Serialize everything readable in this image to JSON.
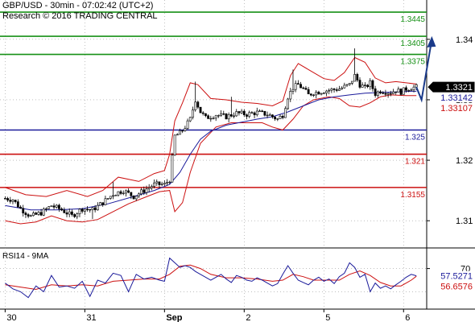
{
  "header": {
    "line1": "GBP/USD - 30min - 07:02:42 (UTC+2)",
    "line2": "Research © 2016 TRADING CENTRAL"
  },
  "rsi_title": "RSI14 - 9MA",
  "colors": {
    "resistance": "#169016",
    "pivot": "#1a1a9a",
    "support": "#cc1010",
    "band": "#cc1010",
    "ma": "#1a1a9a",
    "forecast": "#1a3a8a",
    "rsi": "#1a1a9a",
    "rsi_ma": "#cc1010"
  },
  "chart_data": [
    {
      "type": "candlestick",
      "y_ticks": [
        "1.34",
        "1.33",
        "1.32",
        "1.31"
      ],
      "y_tick_values": [
        1.34,
        1.33,
        1.32,
        1.31
      ],
      "ylim": [
        1.3055,
        1.3465
      ],
      "x_ticks": [
        {
          "label": "30",
          "x": 0
        },
        {
          "label": "31",
          "x": 31
        },
        {
          "label": "Sep",
          "x": 62
        },
        {
          "label": "2",
          "x": 93
        },
        {
          "label": "5",
          "x": 124
        },
        {
          "label": "6",
          "x": 155
        }
      ],
      "xlim": [
        -2,
        164
      ],
      "levels": [
        {
          "value": 1.3445,
          "label": "1.3445",
          "kind": "resistance"
        },
        {
          "value": 1.3405,
          "label": "1.3405",
          "kind": "resistance"
        },
        {
          "value": 1.3375,
          "label": "1.3375",
          "kind": "resistance"
        },
        {
          "value": 1.325,
          "label": "1.325",
          "kind": "pivot"
        },
        {
          "value": 1.321,
          "label": "1.321",
          "kind": "support"
        },
        {
          "value": 1.3155,
          "label": "1.3155",
          "kind": "support"
        }
      ],
      "price_tags": [
        {
          "value": 1.3321,
          "label": "1.3321",
          "style": "black"
        },
        {
          "value": 1.33142,
          "label": "1.33142",
          "style": "blue"
        },
        {
          "value": 1.33107,
          "label": "1.33107",
          "style": "red"
        }
      ],
      "close_anchors": [
        [
          0,
          1.3137
        ],
        [
          3,
          1.3135
        ],
        [
          6,
          1.312
        ],
        [
          10,
          1.3107
        ],
        [
          14,
          1.3113
        ],
        [
          18,
          1.3125
        ],
        [
          22,
          1.3118
        ],
        [
          26,
          1.3108
        ],
        [
          30,
          1.312
        ],
        [
          34,
          1.3118
        ],
        [
          38,
          1.313
        ],
        [
          42,
          1.3144
        ],
        [
          46,
          1.315
        ],
        [
          50,
          1.314
        ],
        [
          54,
          1.315
        ],
        [
          58,
          1.316
        ],
        [
          62,
          1.316
        ],
        [
          64,
          1.3168
        ],
        [
          66,
          1.324
        ],
        [
          68,
          1.3245
        ],
        [
          70,
          1.3255
        ],
        [
          72,
          1.3268
        ],
        [
          74,
          1.33
        ],
        [
          76,
          1.328
        ],
        [
          78,
          1.327
        ],
        [
          82,
          1.3275
        ],
        [
          86,
          1.3272
        ],
        [
          90,
          1.3278
        ],
        [
          94,
          1.3276
        ],
        [
          98,
          1.3279
        ],
        [
          102,
          1.3276
        ],
        [
          106,
          1.3268
        ],
        [
          108,
          1.3275
        ],
        [
          110,
          1.3305
        ],
        [
          112,
          1.332
        ],
        [
          114,
          1.3325
        ],
        [
          116,
          1.3318
        ],
        [
          118,
          1.3308
        ],
        [
          120,
          1.3312
        ],
        [
          122,
          1.3313
        ],
        [
          126,
          1.3316
        ],
        [
          130,
          1.3318
        ],
        [
          134,
          1.3325
        ],
        [
          136,
          1.334
        ],
        [
          138,
          1.3325
        ],
        [
          140,
          1.332
        ],
        [
          142,
          1.3328
        ],
        [
          144,
          1.331
        ],
        [
          146,
          1.3315
        ],
        [
          150,
          1.3312
        ],
        [
          152,
          1.3316
        ],
        [
          154,
          1.3313
        ],
        [
          156,
          1.3318
        ],
        [
          158,
          1.332
        ],
        [
          160,
          1.3321
        ]
      ],
      "spikes": [
        [
          34,
          1.3103
        ],
        [
          42,
          1.3164
        ],
        [
          74,
          1.333
        ],
        [
          88,
          1.3305
        ],
        [
          112,
          1.335
        ],
        [
          136,
          1.3385
        ]
      ],
      "band_upper": [
        [
          0,
          1.3155
        ],
        [
          8,
          1.3143
        ],
        [
          16,
          1.314
        ],
        [
          24,
          1.315
        ],
        [
          32,
          1.314
        ],
        [
          38,
          1.315
        ],
        [
          44,
          1.3172
        ],
        [
          52,
          1.3165
        ],
        [
          58,
          1.3178
        ],
        [
          62,
          1.3183
        ],
        [
          64,
          1.321
        ],
        [
          66,
          1.3265
        ],
        [
          69,
          1.3295
        ],
        [
          72,
          1.3328
        ],
        [
          75,
          1.3325
        ],
        [
          80,
          1.3302
        ],
        [
          86,
          1.33
        ],
        [
          92,
          1.3296
        ],
        [
          98,
          1.3294
        ],
        [
          104,
          1.329
        ],
        [
          108,
          1.3298
        ],
        [
          111,
          1.334
        ],
        [
          114,
          1.336
        ],
        [
          118,
          1.335
        ],
        [
          124,
          1.3335
        ],
        [
          128,
          1.3332
        ],
        [
          132,
          1.3345
        ],
        [
          136,
          1.337
        ],
        [
          140,
          1.3362
        ],
        [
          144,
          1.3336
        ],
        [
          148,
          1.3328
        ],
        [
          152,
          1.333
        ],
        [
          156,
          1.3328
        ],
        [
          160,
          1.3326
        ]
      ],
      "band_lower": [
        [
          0,
          1.31
        ],
        [
          6,
          1.3095
        ],
        [
          12,
          1.3098
        ],
        [
          18,
          1.3108
        ],
        [
          24,
          1.31
        ],
        [
          30,
          1.3098
        ],
        [
          36,
          1.3102
        ],
        [
          42,
          1.3115
        ],
        [
          48,
          1.3128
        ],
        [
          54,
          1.3138
        ],
        [
          60,
          1.3148
        ],
        [
          64,
          1.315
        ],
        [
          66,
          1.3115
        ],
        [
          69,
          1.313
        ],
        [
          72,
          1.318
        ],
        [
          76,
          1.3228
        ],
        [
          82,
          1.3255
        ],
        [
          88,
          1.3262
        ],
        [
          94,
          1.3262
        ],
        [
          100,
          1.3262
        ],
        [
          104,
          1.3255
        ],
        [
          108,
          1.325
        ],
        [
          112,
          1.3268
        ],
        [
          116,
          1.329
        ],
        [
          120,
          1.33
        ],
        [
          126,
          1.3305
        ],
        [
          130,
          1.3302
        ],
        [
          134,
          1.329
        ],
        [
          138,
          1.3288
        ],
        [
          142,
          1.3295
        ],
        [
          146,
          1.3305
        ],
        [
          150,
          1.3308
        ],
        [
          156,
          1.3307
        ],
        [
          160,
          1.3307
        ]
      ],
      "moving_average": [
        [
          0,
          1.3125
        ],
        [
          10,
          1.3118
        ],
        [
          20,
          1.3118
        ],
        [
          30,
          1.312
        ],
        [
          40,
          1.3128
        ],
        [
          50,
          1.314
        ],
        [
          58,
          1.315
        ],
        [
          64,
          1.316
        ],
        [
          68,
          1.318
        ],
        [
          72,
          1.321
        ],
        [
          76,
          1.3235
        ],
        [
          80,
          1.3248
        ],
        [
          86,
          1.3258
        ],
        [
          92,
          1.3263
        ],
        [
          98,
          1.3268
        ],
        [
          104,
          1.3272
        ],
        [
          110,
          1.328
        ],
        [
          116,
          1.329
        ],
        [
          122,
          1.33
        ],
        [
          128,
          1.3305
        ],
        [
          134,
          1.3308
        ],
        [
          140,
          1.3311
        ],
        [
          146,
          1.3312
        ],
        [
          152,
          1.3313
        ],
        [
          158,
          1.3314
        ],
        [
          160,
          1.3314
        ]
      ],
      "forecast_path": [
        [
          160,
          1.3321
        ],
        [
          162,
          1.33
        ],
        [
          166,
          1.34
        ]
      ]
    },
    {
      "type": "line",
      "title": "RSI14 - 9MA",
      "y_ticks": [
        "70"
      ],
      "y_tick_values": [
        70
      ],
      "ylim": [
        0,
        100
      ],
      "levels": [
        {
          "value": 70
        },
        {
          "value": 30
        }
      ],
      "price_tags": [
        {
          "value": 57.5271,
          "label": "57.5271",
          "style": "blue"
        },
        {
          "value": 56.6576,
          "label": "56.6576",
          "style": "red"
        }
      ],
      "series": [
        {
          "key": "rsi",
          "points": [
            [
              0,
              45
            ],
            [
              3,
              35
            ],
            [
              6,
              30
            ],
            [
              9,
              20
            ],
            [
              12,
              40
            ],
            [
              15,
              30
            ],
            [
              18,
              58
            ],
            [
              21,
              38
            ],
            [
              24,
              40
            ],
            [
              27,
              36
            ],
            [
              30,
              48
            ],
            [
              33,
              22
            ],
            [
              36,
              50
            ],
            [
              39,
              45
            ],
            [
              42,
              62
            ],
            [
              45,
              58
            ],
            [
              48,
              30
            ],
            [
              51,
              60
            ],
            [
              54,
              52
            ],
            [
              57,
              55
            ],
            [
              60,
              50
            ],
            [
              62,
              48
            ],
            [
              64,
              88
            ],
            [
              66,
              80
            ],
            [
              68,
              72
            ],
            [
              70,
              75
            ],
            [
              72,
              72
            ],
            [
              74,
              65
            ],
            [
              76,
              60
            ],
            [
              78,
              55
            ],
            [
              80,
              50
            ],
            [
              82,
              55
            ],
            [
              84,
              60
            ],
            [
              86,
              52
            ],
            [
              88,
              46
            ],
            [
              90,
              58
            ],
            [
              92,
              55
            ],
            [
              94,
              50
            ],
            [
              96,
              48
            ],
            [
              98,
              54
            ],
            [
              100,
              50
            ],
            [
              102,
              45
            ],
            [
              104,
              40
            ],
            [
              106,
              44
            ],
            [
              108,
              60
            ],
            [
              110,
              75
            ],
            [
              112,
              62
            ],
            [
              114,
              50
            ],
            [
              116,
              46
            ],
            [
              118,
              42
            ],
            [
              120,
              50
            ],
            [
              122,
              55
            ],
            [
              124,
              48
            ],
            [
              126,
              52
            ],
            [
              128,
              44
            ],
            [
              130,
              56
            ],
            [
              132,
              62
            ],
            [
              134,
              80
            ],
            [
              136,
              72
            ],
            [
              138,
              55
            ],
            [
              140,
              60
            ],
            [
              142,
              30
            ],
            [
              144,
              45
            ],
            [
              146,
              36
            ],
            [
              148,
              40
            ],
            [
              150,
              35
            ],
            [
              152,
              42
            ],
            [
              154,
              48
            ],
            [
              156,
              55
            ],
            [
              158,
              60
            ],
            [
              160,
              57.5
            ]
          ]
        },
        {
          "key": "rsi_ma",
          "points": [
            [
              0,
              42
            ],
            [
              6,
              38
            ],
            [
              12,
              34
            ],
            [
              18,
              42
            ],
            [
              24,
              40
            ],
            [
              30,
              42
            ],
            [
              36,
              40
            ],
            [
              42,
              48
            ],
            [
              48,
              50
            ],
            [
              54,
              52
            ],
            [
              60,
              52
            ],
            [
              64,
              60
            ],
            [
              68,
              74
            ],
            [
              72,
              76
            ],
            [
              76,
              70
            ],
            [
              80,
              60
            ],
            [
              86,
              54
            ],
            [
              92,
              54
            ],
            [
              98,
              52
            ],
            [
              104,
              48
            ],
            [
              108,
              50
            ],
            [
              112,
              60
            ],
            [
              116,
              56
            ],
            [
              120,
              50
            ],
            [
              126,
              50
            ],
            [
              130,
              50
            ],
            [
              134,
              60
            ],
            [
              138,
              66
            ],
            [
              142,
              58
            ],
            [
              146,
              46
            ],
            [
              150,
              40
            ],
            [
              154,
              40
            ],
            [
              158,
              50
            ],
            [
              160,
              56.7
            ]
          ]
        }
      ]
    }
  ]
}
